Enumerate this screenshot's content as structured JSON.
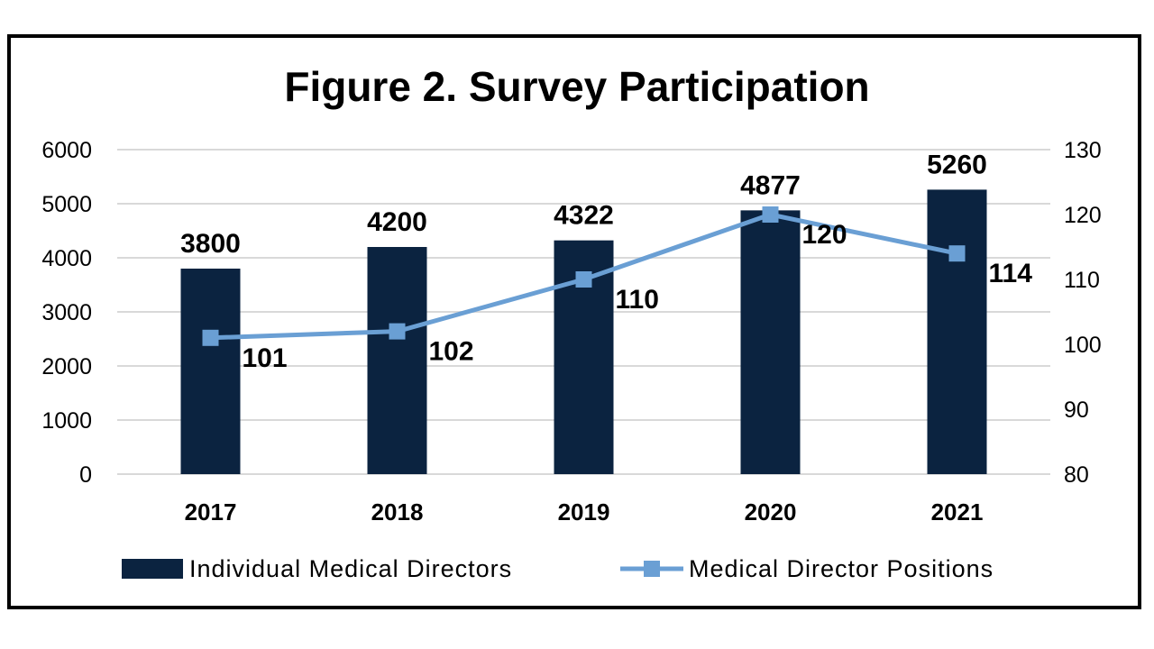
{
  "chart_data": {
    "type": "bar+line",
    "title": "Figure 2. Survey Participation",
    "categories": [
      "2017",
      "2018",
      "2019",
      "2020",
      "2021"
    ],
    "series": [
      {
        "name": "Individual Medical Directors",
        "type": "bar",
        "axis": "left",
        "values": [
          3800,
          4200,
          4322,
          4877,
          5260
        ],
        "color": "#0b2340"
      },
      {
        "name": "Medical Director Positions",
        "type": "line",
        "axis": "right",
        "values": [
          101,
          102,
          110,
          120,
          114
        ],
        "color": "#6a9fd4",
        "marker": "square"
      }
    ],
    "y_left": {
      "range": [
        0,
        6000
      ],
      "ticks": [
        0,
        1000,
        2000,
        3000,
        4000,
        5000,
        6000
      ]
    },
    "y_right": {
      "range": [
        80,
        130
      ],
      "ticks": [
        80,
        90,
        100,
        110,
        120,
        130
      ]
    },
    "grid": true,
    "legend_position": "bottom"
  }
}
